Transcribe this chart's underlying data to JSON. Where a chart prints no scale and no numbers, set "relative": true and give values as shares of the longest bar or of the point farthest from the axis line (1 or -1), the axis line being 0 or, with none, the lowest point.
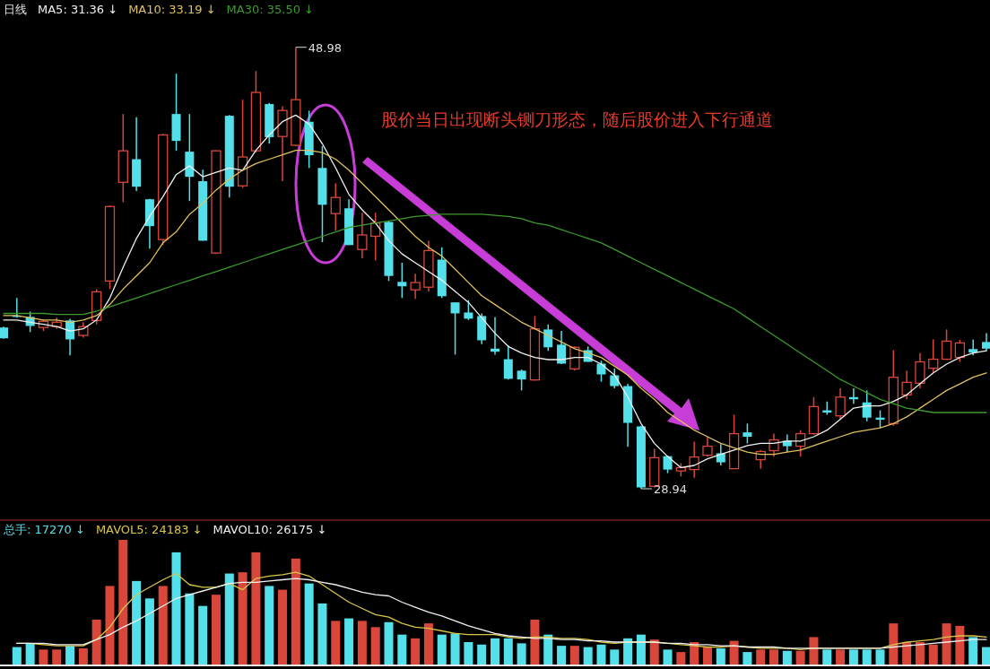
{
  "chart_data": [
    {
      "type": "candlestick",
      "title": "日线",
      "legend": "top left",
      "categories": [
        null,
        null,
        null,
        null,
        null,
        null,
        null,
        null,
        null,
        null,
        null,
        null,
        null,
        null,
        null,
        null,
        null,
        null,
        null,
        null,
        null,
        null,
        null,
        null,
        null,
        null,
        null,
        null,
        null,
        null,
        null,
        null,
        null,
        null,
        null,
        null,
        null,
        null,
        null,
        null,
        null,
        null,
        null,
        null,
        null,
        null,
        null,
        null,
        null,
        null,
        null,
        null,
        null,
        null,
        null,
        null,
        null,
        null,
        null,
        null,
        null,
        null,
        null,
        null,
        null,
        null,
        null,
        null,
        null,
        null,
        null,
        null,
        null,
        null,
        null
      ],
      "ohlc": [
        [
          36.26,
          36.3,
          35.75,
          35.77
        ],
        [
          36.8,
          37.6,
          36.7,
          36.75
        ],
        [
          36.74,
          36.98,
          36.05,
          36.33
        ],
        [
          36.26,
          36.6,
          36.1,
          36.54
        ],
        [
          36.3,
          36.7,
          36.2,
          36.5
        ],
        [
          36.58,
          36.65,
          35.0,
          35.72
        ],
        [
          35.9,
          36.5,
          35.8,
          36.3
        ],
        [
          36.58,
          38.0,
          36.4,
          37.88
        ],
        [
          38.37,
          41.8,
          38.0,
          41.75
        ],
        [
          42.85,
          45.95,
          41.95,
          44.28
        ],
        [
          43.9,
          45.8,
          42.45,
          42.65
        ],
        [
          42.08,
          42.1,
          39.84,
          40.86
        ],
        [
          40.25,
          45.05,
          40.0,
          45.0
        ],
        [
          45.95,
          47.78,
          44.28,
          44.73
        ],
        [
          44.24,
          45.95,
          42.0,
          43.1
        ],
        [
          42.9,
          43.42,
          40.2,
          40.2
        ],
        [
          39.64,
          44.3,
          39.6,
          44.28
        ],
        [
          45.87,
          45.9,
          42.16,
          42.65
        ],
        [
          42.69,
          46.6,
          42.6,
          44.0
        ],
        [
          44.28,
          47.9,
          44.2,
          46.93
        ],
        [
          46.4,
          46.45,
          44.6,
          44.9
        ],
        [
          44.93,
          46.3,
          42.9,
          46.11
        ],
        [
          44.53,
          48.98,
          44.5,
          46.6
        ],
        [
          45.6,
          46.1,
          43.5,
          44.08
        ],
        [
          43.5,
          44.5,
          40.13,
          41.83
        ],
        [
          41.43,
          42.8,
          40.66,
          42.16
        ],
        [
          41.67,
          42.08,
          40.0,
          40.0
        ],
        [
          39.8,
          41.47,
          39.4,
          40.46
        ],
        [
          40.4,
          41.47,
          39.3,
          41.0
        ],
        [
          41.05,
          41.1,
          38.37,
          38.6
        ],
        [
          38.33,
          39.2,
          37.6,
          38.13
        ],
        [
          37.97,
          38.7,
          37.56,
          38.3
        ],
        [
          38.09,
          40.2,
          37.9,
          39.75
        ],
        [
          39.34,
          39.9,
          37.6,
          37.68
        ],
        [
          37.4,
          37.4,
          35.03,
          36.9
        ],
        [
          36.94,
          37.5,
          36.6,
          36.66
        ],
        [
          36.78,
          36.9,
          35.5,
          35.68
        ],
        [
          35.3,
          36.74,
          35.03,
          35.16
        ],
        [
          34.82,
          35.45,
          33.9,
          33.93
        ],
        [
          34.3,
          34.35,
          33.4,
          33.9
        ],
        [
          33.88,
          36.78,
          33.85,
          36.2
        ],
        [
          36.17,
          36.4,
          35.2,
          35.36
        ],
        [
          35.48,
          36.1,
          34.6,
          34.62
        ],
        [
          34.38,
          35.4,
          34.3,
          35.36
        ],
        [
          35.23,
          35.4,
          34.7,
          34.7
        ],
        [
          34.62,
          34.75,
          33.8,
          34.13
        ],
        [
          34.09,
          34.4,
          33.5,
          33.6
        ],
        [
          33.6,
          33.7,
          30.84,
          31.93
        ],
        [
          31.77,
          31.8,
          28.94,
          29.0
        ],
        [
          29.05,
          30.75,
          29.0,
          30.35
        ],
        [
          30.42,
          30.45,
          29.65,
          29.81
        ],
        [
          29.75,
          30.1,
          29.5,
          29.9
        ],
        [
          29.81,
          31.08,
          29.44,
          30.38
        ],
        [
          30.46,
          31.3,
          30.4,
          30.87
        ],
        [
          30.55,
          30.97,
          30.0,
          30.14
        ],
        [
          29.85,
          32.3,
          29.85,
          31.44
        ],
        [
          31.5,
          31.9,
          31.0,
          31.3
        ],
        [
          30.26,
          30.7,
          29.85,
          30.63
        ],
        [
          30.67,
          31.44,
          30.4,
          31.16
        ],
        [
          31.12,
          31.4,
          30.6,
          30.87
        ],
        [
          30.87,
          31.6,
          30.4,
          31.44
        ],
        [
          31.44,
          33.1,
          31.4,
          32.67
        ],
        [
          32.5,
          32.9,
          32.3,
          32.4
        ],
        [
          32.25,
          33.5,
          32.1,
          33.1
        ],
        [
          33.1,
          33.5,
          32.8,
          33.0
        ],
        [
          32.86,
          33.4,
          32.0,
          32.17
        ],
        [
          32.17,
          32.5,
          31.7,
          32.07
        ],
        [
          31.9,
          35.23,
          31.8,
          34.0
        ],
        [
          33.2,
          34.3,
          33.0,
          33.77
        ],
        [
          33.73,
          35.1,
          33.5,
          34.7
        ],
        [
          34.41,
          35.72,
          34.2,
          34.82
        ],
        [
          34.82,
          36.17,
          34.8,
          35.64
        ],
        [
          34.9,
          35.7,
          34.7,
          35.56
        ],
        [
          35.28,
          35.72,
          35.0,
          35.12
        ],
        [
          35.6,
          36.0,
          35.2,
          35.3
        ]
      ],
      "colors": [
        "#54e0ea",
        "#54e0ea",
        "#54e0ea",
        "#d9473b",
        "#d9473b",
        "#54e0ea",
        "#d9473b",
        "#d9473b",
        "#d9473b",
        "#d9473b",
        "#54e0ea",
        "#54e0ea",
        "#d9473b",
        "#54e0ea",
        "#54e0ea",
        "#54e0ea",
        "#d9473b",
        "#54e0ea",
        "#d9473b",
        "#d9473b",
        "#54e0ea",
        "#d9473b",
        "#d9473b",
        "#54e0ea",
        "#54e0ea",
        "#d9473b",
        "#54e0ea",
        "#d9473b",
        "#d9473b",
        "#54e0ea",
        "#54e0ea",
        "#d9473b",
        "#d9473b",
        "#54e0ea",
        "#54e0ea",
        "#54e0ea",
        "#54e0ea",
        "#54e0ea",
        "#54e0ea",
        "#54e0ea",
        "#d9473b",
        "#54e0ea",
        "#54e0ea",
        "#d9473b",
        "#54e0ea",
        "#54e0ea",
        "#54e0ea",
        "#54e0ea",
        "#54e0ea",
        "#d9473b",
        "#54e0ea",
        "#d9473b",
        "#d9473b",
        "#d9473b",
        "#54e0ea",
        "#d9473b",
        "#54e0ea",
        "#d9473b",
        "#d9473b",
        "#54e0ea",
        "#d9473b",
        "#d9473b",
        "#54e0ea",
        "#d9473b",
        "#54e0ea",
        "#54e0ea",
        "#54e0ea",
        "#d9473b",
        "#d9473b",
        "#d9473b",
        "#d9473b",
        "#d9473b",
        "#d9473b",
        "#54e0ea",
        "#54e0ea"
      ],
      "series": [
        {
          "name": "MA5: 31.36 ↓",
          "type": "line",
          "color": "#f0f0f0",
          "values": [
            36.6,
            36.6,
            36.5,
            36.4,
            36.3,
            36.1,
            36.2,
            36.6,
            37.6,
            39.0,
            40.3,
            41.3,
            42.2,
            43.2,
            43.6,
            43.1,
            43.3,
            43.5,
            43.4,
            44.3,
            45.0,
            45.6,
            45.9,
            45.5,
            44.6,
            43.5,
            42.3,
            41.6,
            41.0,
            40.2,
            39.6,
            39.2,
            38.8,
            38.4,
            37.9,
            37.4,
            36.7,
            36.0,
            35.4,
            35.1,
            34.9,
            34.8,
            34.8,
            34.9,
            34.9,
            34.6,
            34.1,
            33.1,
            31.9,
            31.0,
            30.4,
            29.9,
            30.0,
            30.3,
            30.5,
            30.7,
            30.9,
            31.0,
            31.0,
            31.1,
            31.1,
            31.3,
            31.6,
            32.1,
            32.6,
            32.7,
            32.7,
            32.9,
            33.2,
            33.7,
            34.2,
            34.6,
            34.9,
            35.1,
            35.2
          ]
        },
        {
          "name": "MA10: 33.19 ↓",
          "type": "line",
          "color": "#e0c060",
          "values": [
            36.8,
            36.8,
            36.7,
            36.6,
            36.6,
            36.5,
            36.6,
            36.8,
            37.3,
            38.0,
            38.6,
            39.2,
            40.1,
            40.6,
            41.4,
            41.9,
            42.5,
            43.0,
            43.4,
            43.7,
            43.9,
            44.1,
            44.3,
            44.3,
            44.2,
            43.9,
            43.4,
            42.8,
            42.2,
            41.6,
            41.0,
            40.4,
            39.9,
            39.5,
            38.9,
            38.3,
            37.7,
            37.3,
            36.9,
            36.5,
            36.2,
            35.9,
            35.6,
            35.3,
            35.1,
            34.9,
            34.5,
            34.1,
            33.5,
            33.0,
            32.4,
            32.0,
            31.6,
            31.3,
            31.0,
            30.8,
            30.6,
            30.5,
            30.5,
            30.6,
            30.7,
            30.9,
            31.1,
            31.3,
            31.5,
            31.6,
            31.7,
            31.9,
            32.2,
            32.6,
            33.0,
            33.4,
            33.7,
            34.0,
            34.2
          ]
        },
        {
          "name": "MA30: 35.50 ↓",
          "type": "line",
          "color": "#3c9a2c",
          "values": [
            36.9,
            36.9,
            36.9,
            36.9,
            36.85,
            36.85,
            36.85,
            37.0,
            37.2,
            37.4,
            37.6,
            37.8,
            38.0,
            38.2,
            38.4,
            38.6,
            38.8,
            39.0,
            39.2,
            39.4,
            39.6,
            39.8,
            40.0,
            40.2,
            40.4,
            40.6,
            40.8,
            40.9,
            41.0,
            41.1,
            41.2,
            41.3,
            41.35,
            41.4,
            41.4,
            41.4,
            41.4,
            41.35,
            41.3,
            41.2,
            41.0,
            40.9,
            40.7,
            40.5,
            40.3,
            40.1,
            39.8,
            39.5,
            39.2,
            38.9,
            38.6,
            38.3,
            38.0,
            37.7,
            37.4,
            37.1,
            36.7,
            36.3,
            35.9,
            35.5,
            35.1,
            34.7,
            34.3,
            33.9,
            33.6,
            33.3,
            33.0,
            32.8,
            32.6,
            32.5,
            32.4,
            32.4,
            32.4,
            32.4,
            32.4
          ]
        }
      ],
      "annotations": [
        "48.98",
        "28.94",
        "股价当日出现断头铡刀形态，随后股价进入下行通道"
      ]
    },
    {
      "type": "bar",
      "relative": true,
      "categories": [
        null,
        null,
        null,
        null,
        null,
        null,
        null,
        null,
        null,
        null,
        null,
        null,
        null,
        null,
        null,
        null,
        null,
        null,
        null,
        null,
        null,
        null,
        null,
        null,
        null,
        null,
        null,
        null,
        null,
        null,
        null,
        null,
        null,
        null,
        null,
        null,
        null,
        null,
        null,
        null,
        null,
        null,
        null,
        null,
        null,
        null,
        null,
        null,
        null,
        null,
        null,
        null,
        null,
        null,
        null,
        null,
        null,
        null,
        null,
        null,
        null,
        null,
        null,
        null,
        null,
        null,
        null,
        null,
        null,
        null,
        null,
        null,
        null,
        null,
        null
      ],
      "series": [
        {
          "name": "总手: 17270 ↓",
          "type": "bar",
          "color": "#54e0ea",
          "colors": [
            "#54e0ea",
            "#54e0ea",
            "#54e0ea",
            "#d9473b",
            "#d9473b",
            "#54e0ea",
            "#d9473b",
            "#d9473b",
            "#d9473b",
            "#d9473b",
            "#54e0ea",
            "#54e0ea",
            "#d9473b",
            "#54e0ea",
            "#54e0ea",
            "#54e0ea",
            "#d9473b",
            "#54e0ea",
            "#d9473b",
            "#d9473b",
            "#54e0ea",
            "#d9473b",
            "#d9473b",
            "#54e0ea",
            "#54e0ea",
            "#d9473b",
            "#54e0ea",
            "#d9473b",
            "#d9473b",
            "#54e0ea",
            "#54e0ea",
            "#d9473b",
            "#d9473b",
            "#54e0ea",
            "#54e0ea",
            "#54e0ea",
            "#54e0ea",
            "#54e0ea",
            "#54e0ea",
            "#54e0ea",
            "#d9473b",
            "#54e0ea",
            "#54e0ea",
            "#d9473b",
            "#54e0ea",
            "#54e0ea",
            "#54e0ea",
            "#54e0ea",
            "#54e0ea",
            "#d9473b",
            "#54e0ea",
            "#d9473b",
            "#d9473b",
            "#d9473b",
            "#54e0ea",
            "#d9473b",
            "#54e0ea",
            "#d9473b",
            "#d9473b",
            "#54e0ea",
            "#d9473b",
            "#d9473b",
            "#54e0ea",
            "#d9473b",
            "#54e0ea",
            "#54e0ea",
            "#54e0ea",
            "#d9473b",
            "#d9473b",
            "#d9473b",
            "#d9473b",
            "#d9473b",
            "#d9473b",
            "#54e0ea",
            "#54e0ea"
          ],
          "values": [
            null,
            0.14,
            0.17,
            0.12,
            0.12,
            0.15,
            0.13,
            0.36,
            0.63,
            1.0,
            0.67,
            0.53,
            0.63,
            0.9,
            0.57,
            0.47,
            0.56,
            0.73,
            0.74,
            0.9,
            0.63,
            0.6,
            0.85,
            0.65,
            0.49,
            0.35,
            0.37,
            0.35,
            0.3,
            0.34,
            0.24,
            0.21,
            0.33,
            0.24,
            0.25,
            0.18,
            0.16,
            0.21,
            0.21,
            0.17,
            0.36,
            0.24,
            0.15,
            0.15,
            0.14,
            0.16,
            0.12,
            0.21,
            0.24,
            0.2,
            0.12,
            0.1,
            0.18,
            0.14,
            0.13,
            0.19,
            0.1,
            0.12,
            0.12,
            0.11,
            0.11,
            0.22,
            0.12,
            0.12,
            0.12,
            0.12,
            0.12,
            0.33,
            0.18,
            0.18,
            0.16,
            0.33,
            0.31,
            0.22,
            0.14
          ]
        },
        {
          "name": "MAVOL5: 24183 ↓",
          "type": "line",
          "color": "#d8c64a",
          "values": [
            null,
            0.17,
            0.17,
            0.16,
            0.15,
            0.15,
            0.15,
            0.2,
            0.3,
            0.45,
            0.56,
            0.62,
            0.68,
            0.73,
            0.64,
            0.62,
            0.62,
            0.65,
            0.6,
            0.69,
            0.71,
            0.72,
            0.74,
            0.71,
            0.64,
            0.57,
            0.5,
            0.45,
            0.4,
            0.38,
            0.33,
            0.3,
            0.29,
            0.27,
            0.25,
            0.24,
            0.24,
            0.24,
            0.22,
            0.21,
            0.22,
            0.22,
            0.21,
            0.21,
            0.2,
            0.18,
            0.17,
            0.18,
            0.18,
            0.18,
            0.17,
            0.16,
            0.15,
            0.14,
            0.14,
            0.15,
            0.14,
            0.13,
            0.13,
            0.13,
            0.12,
            0.13,
            0.13,
            0.13,
            0.13,
            0.13,
            0.13,
            0.16,
            0.18,
            0.19,
            0.2,
            0.22,
            0.23,
            0.23,
            0.22
          ]
        },
        {
          "name": "MAVOL10: 26175 ↓",
          "type": "line",
          "color": "#f0f0f0",
          "values": [
            null,
            0.17,
            0.17,
            0.17,
            0.16,
            0.16,
            0.16,
            0.2,
            0.24,
            0.3,
            0.35,
            0.41,
            0.47,
            0.53,
            0.56,
            0.59,
            0.62,
            0.65,
            0.66,
            0.66,
            0.67,
            0.68,
            0.69,
            0.68,
            0.66,
            0.64,
            0.61,
            0.58,
            0.56,
            0.55,
            0.5,
            0.46,
            0.42,
            0.39,
            0.35,
            0.31,
            0.28,
            0.25,
            0.23,
            0.22,
            0.21,
            0.21,
            0.2,
            0.2,
            0.19,
            0.19,
            0.18,
            0.18,
            0.18,
            0.18,
            0.17,
            0.17,
            0.16,
            0.16,
            0.15,
            0.15,
            0.14,
            0.14,
            0.14,
            0.13,
            0.13,
            0.13,
            0.13,
            0.13,
            0.13,
            0.13,
            0.13,
            0.14,
            0.15,
            0.16,
            0.17,
            0.18,
            0.19,
            0.2,
            0.2
          ]
        }
      ]
    }
  ]
}
